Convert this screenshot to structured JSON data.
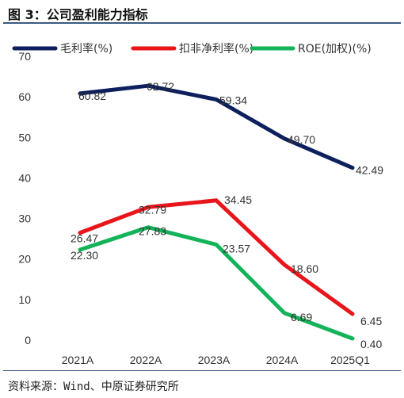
{
  "figure_title": "图 3：公司盈利能力指标",
  "source_note": "资料来源：Wind、中原证券研究所",
  "chart_data": {
    "type": "line",
    "categories": [
      "2021A",
      "2022A",
      "2023A",
      "2024A",
      "2025Q1"
    ],
    "ylim": [
      0,
      70
    ],
    "yticks": [
      0,
      10,
      20,
      30,
      40,
      50,
      60,
      70
    ],
    "grid": false,
    "legend_position": "top",
    "series": [
      {
        "name": "毛利率(%)",
        "color": "#0d1f5c",
        "values": [
          60.82,
          62.72,
          59.34,
          49.7,
          42.49
        ],
        "labels": [
          "60.82",
          "62.72",
          "59.34",
          "49.70",
          "42.49"
        ]
      },
      {
        "name": "扣非净利率(%)",
        "color": "#e8151b",
        "values": [
          26.47,
          32.79,
          34.45,
          18.6,
          6.45
        ],
        "labels": [
          "26.47",
          "32.79",
          "34.45",
          "18.60",
          "6.45"
        ]
      },
      {
        "name": "ROE(加权)(%)",
        "color": "#14b35a",
        "values": [
          22.3,
          27.83,
          23.57,
          6.69,
          0.4
        ],
        "labels": [
          "22.30",
          "27.83",
          "23.57",
          "6.69",
          "0.40"
        ]
      }
    ]
  }
}
